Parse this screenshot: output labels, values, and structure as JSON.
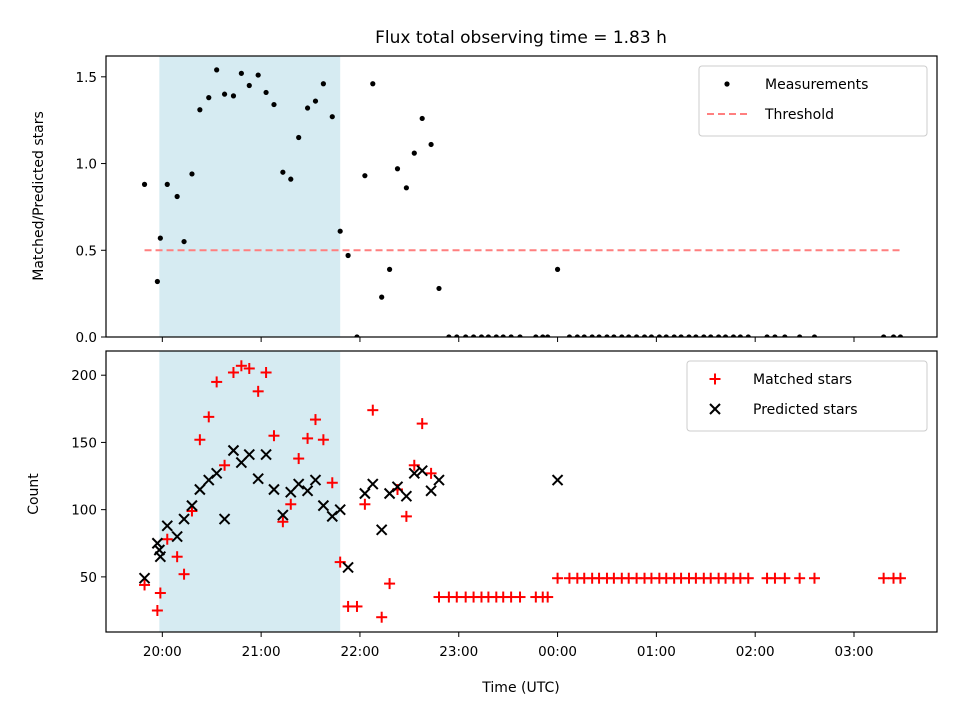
{
  "figure": {
    "title": "Flux total observing time = 1.83 h",
    "xlabel": "Time (UTC)",
    "top_ylabel": "Matched/Predicted stars",
    "bottom_ylabel": "Count"
  },
  "colors": {
    "shade": "#add8e6",
    "threshold": "#ff7f7f",
    "matched": "#ff0000",
    "predicted": "#000000",
    "measurements": "#000000"
  },
  "chart_data": [
    {
      "type": "scatter",
      "title": "Flux total observing time = 1.83 h",
      "xlabel": "",
      "ylabel": "Matched/Predicted stars",
      "x_unit": "hours since 19:00 UTC",
      "xlim": [
        19.43,
        27.84
      ],
      "ylim": [
        0,
        1.62
      ],
      "yticks": [
        0.0,
        0.5,
        1.0,
        1.5
      ],
      "ytick_labels": [
        "0.0",
        "0.5",
        "1.0",
        "1.5"
      ],
      "grid": false,
      "legend": "top-right",
      "shaded_region": [
        19.97,
        21.8
      ],
      "threshold": {
        "name": "Threshold",
        "y": 0.5,
        "x": [
          19.82,
          27.47
        ],
        "style": "dashed"
      },
      "series": [
        {
          "name": "Measurements",
          "points": [
            [
              19.82,
              0.88
            ],
            [
              19.95,
              0.32
            ],
            [
              19.98,
              0.57
            ],
            [
              20.05,
              0.88
            ],
            [
              20.15,
              0.81
            ],
            [
              20.22,
              0.55
            ],
            [
              20.3,
              0.94
            ],
            [
              20.38,
              1.31
            ],
            [
              20.47,
              1.38
            ],
            [
              20.55,
              1.54
            ],
            [
              20.63,
              1.4
            ],
            [
              20.72,
              1.39
            ],
            [
              20.8,
              1.52
            ],
            [
              20.88,
              1.45
            ],
            [
              20.97,
              1.51
            ],
            [
              21.05,
              1.41
            ],
            [
              21.13,
              1.34
            ],
            [
              21.22,
              0.95
            ],
            [
              21.3,
              0.91
            ],
            [
              21.38,
              1.15
            ],
            [
              21.47,
              1.32
            ],
            [
              21.55,
              1.36
            ],
            [
              21.63,
              1.46
            ],
            [
              21.72,
              1.27
            ],
            [
              21.8,
              0.61
            ],
            [
              21.88,
              0.47
            ],
            [
              21.97,
              0.0
            ],
            [
              22.05,
              0.93
            ],
            [
              22.13,
              1.46
            ],
            [
              22.22,
              0.23
            ],
            [
              22.3,
              0.39
            ],
            [
              22.38,
              0.97
            ],
            [
              22.47,
              0.86
            ],
            [
              22.55,
              1.06
            ],
            [
              22.63,
              1.26
            ],
            [
              22.72,
              1.11
            ],
            [
              22.8,
              0.28
            ],
            [
              22.9,
              0.0
            ],
            [
              22.98,
              0.0
            ],
            [
              23.07,
              0.0
            ],
            [
              23.15,
              0.0
            ],
            [
              23.23,
              0.0
            ],
            [
              23.3,
              0.0
            ],
            [
              23.38,
              0.0
            ],
            [
              23.45,
              0.0
            ],
            [
              23.53,
              0.0
            ],
            [
              23.62,
              0.0
            ],
            [
              23.78,
              0.0
            ],
            [
              23.85,
              0.0
            ],
            [
              23.9,
              0.0
            ],
            [
              24.0,
              0.39
            ],
            [
              24.12,
              0.0
            ],
            [
              24.2,
              0.0
            ],
            [
              24.27,
              0.0
            ],
            [
              24.35,
              0.0
            ],
            [
              24.42,
              0.0
            ],
            [
              24.5,
              0.0
            ],
            [
              24.57,
              0.0
            ],
            [
              24.65,
              0.0
            ],
            [
              24.72,
              0.0
            ],
            [
              24.8,
              0.0
            ],
            [
              24.88,
              0.0
            ],
            [
              24.95,
              0.0
            ],
            [
              25.03,
              0.0
            ],
            [
              25.1,
              0.0
            ],
            [
              25.18,
              0.0
            ],
            [
              25.25,
              0.0
            ],
            [
              25.33,
              0.0
            ],
            [
              25.4,
              0.0
            ],
            [
              25.48,
              0.0
            ],
            [
              25.55,
              0.0
            ],
            [
              25.63,
              0.0
            ],
            [
              25.7,
              0.0
            ],
            [
              25.78,
              0.0
            ],
            [
              25.85,
              0.0
            ],
            [
              25.93,
              0.0
            ],
            [
              26.12,
              0.0
            ],
            [
              26.2,
              0.0
            ],
            [
              26.3,
              0.0
            ],
            [
              26.45,
              0.0
            ],
            [
              26.6,
              0.0
            ],
            [
              27.3,
              0.0
            ],
            [
              27.4,
              0.0
            ],
            [
              27.47,
              0.0
            ]
          ]
        }
      ]
    },
    {
      "type": "scatter",
      "title": "",
      "xlabel": "Time (UTC)",
      "ylabel": "Count",
      "x_unit": "hours since 19:00 UTC",
      "xlim": [
        19.43,
        27.84
      ],
      "ylim": [
        9,
        218
      ],
      "yticks": [
        50,
        100,
        150,
        200
      ],
      "ytick_labels": [
        "50",
        "100",
        "150",
        "200"
      ],
      "xticks": [
        20,
        21,
        22,
        23,
        24,
        25,
        26,
        27
      ],
      "xtick_labels": [
        "20:00",
        "21:00",
        "22:00",
        "23:00",
        "00:00",
        "01:00",
        "02:00",
        "03:00"
      ],
      "grid": false,
      "legend": "top-right",
      "shaded_region": [
        19.97,
        21.8
      ],
      "series": [
        {
          "name": "Matched stars",
          "marker": "+",
          "points": [
            [
              19.82,
              44
            ],
            [
              19.95,
              25
            ],
            [
              19.98,
              38
            ],
            [
              20.05,
              78
            ],
            [
              20.15,
              65
            ],
            [
              20.22,
              52
            ],
            [
              20.3,
              99
            ],
            [
              20.38,
              152
            ],
            [
              20.47,
              169
            ],
            [
              20.55,
              195
            ],
            [
              20.63,
              133
            ],
            [
              20.72,
              202
            ],
            [
              20.8,
              207
            ],
            [
              20.88,
              205
            ],
            [
              20.97,
              188
            ],
            [
              21.05,
              202
            ],
            [
              21.13,
              155
            ],
            [
              21.22,
              91
            ],
            [
              21.3,
              104
            ],
            [
              21.38,
              138
            ],
            [
              21.47,
              153
            ],
            [
              21.55,
              167
            ],
            [
              21.63,
              152
            ],
            [
              21.72,
              120
            ],
            [
              21.8,
              61
            ],
            [
              21.88,
              28
            ],
            [
              21.97,
              28
            ],
            [
              22.05,
              104
            ],
            [
              22.13,
              174
            ],
            [
              22.22,
              20
            ],
            [
              22.3,
              45
            ],
            [
              22.38,
              115
            ],
            [
              22.47,
              95
            ],
            [
              22.55,
              133
            ],
            [
              22.63,
              164
            ],
            [
              22.72,
              127
            ],
            [
              22.8,
              35
            ],
            [
              22.9,
              35
            ],
            [
              22.98,
              35
            ],
            [
              23.07,
              35
            ],
            [
              23.15,
              35
            ],
            [
              23.23,
              35
            ],
            [
              23.3,
              35
            ],
            [
              23.38,
              35
            ],
            [
              23.45,
              35
            ],
            [
              23.53,
              35
            ],
            [
              23.62,
              35
            ],
            [
              23.78,
              35
            ],
            [
              23.85,
              35
            ],
            [
              23.9,
              35
            ],
            [
              24.0,
              49
            ],
            [
              24.12,
              49
            ],
            [
              24.2,
              49
            ],
            [
              24.27,
              49
            ],
            [
              24.35,
              49
            ],
            [
              24.42,
              49
            ],
            [
              24.5,
              49
            ],
            [
              24.57,
              49
            ],
            [
              24.65,
              49
            ],
            [
              24.72,
              49
            ],
            [
              24.8,
              49
            ],
            [
              24.88,
              49
            ],
            [
              24.95,
              49
            ],
            [
              25.03,
              49
            ],
            [
              25.1,
              49
            ],
            [
              25.18,
              49
            ],
            [
              25.25,
              49
            ],
            [
              25.33,
              49
            ],
            [
              25.4,
              49
            ],
            [
              25.48,
              49
            ],
            [
              25.55,
              49
            ],
            [
              25.63,
              49
            ],
            [
              25.7,
              49
            ],
            [
              25.78,
              49
            ],
            [
              25.85,
              49
            ],
            [
              25.93,
              49
            ],
            [
              26.12,
              49
            ],
            [
              26.2,
              49
            ],
            [
              26.3,
              49
            ],
            [
              26.45,
              49
            ],
            [
              26.6,
              49
            ],
            [
              27.3,
              49
            ],
            [
              27.4,
              49
            ],
            [
              27.47,
              49
            ]
          ]
        },
        {
          "name": "Predicted stars",
          "marker": "x",
          "points": [
            [
              19.82,
              49
            ],
            [
              19.95,
              75
            ],
            [
              19.98,
              65
            ],
            [
              19.97,
              70
            ],
            [
              20.05,
              88
            ],
            [
              20.15,
              80
            ],
            [
              20.22,
              93
            ],
            [
              20.3,
              103
            ],
            [
              20.38,
              115
            ],
            [
              20.47,
              122
            ],
            [
              20.55,
              127
            ],
            [
              20.63,
              93
            ],
            [
              20.72,
              144
            ],
            [
              20.8,
              135
            ],
            [
              20.88,
              141
            ],
            [
              20.97,
              123
            ],
            [
              21.05,
              141
            ],
            [
              21.13,
              115
            ],
            [
              21.22,
              96
            ],
            [
              21.3,
              113
            ],
            [
              21.38,
              119
            ],
            [
              21.47,
              114
            ],
            [
              21.55,
              122
            ],
            [
              21.63,
              103
            ],
            [
              21.72,
              95
            ],
            [
              21.8,
              100
            ],
            [
              21.88,
              57
            ],
            [
              22.05,
              112
            ],
            [
              22.13,
              119
            ],
            [
              22.22,
              85
            ],
            [
              22.3,
              112
            ],
            [
              22.38,
              117
            ],
            [
              22.47,
              110
            ],
            [
              22.55,
              127
            ],
            [
              22.63,
              129
            ],
            [
              22.72,
              114
            ],
            [
              22.8,
              122
            ],
            [
              24.0,
              122
            ]
          ]
        }
      ]
    }
  ]
}
